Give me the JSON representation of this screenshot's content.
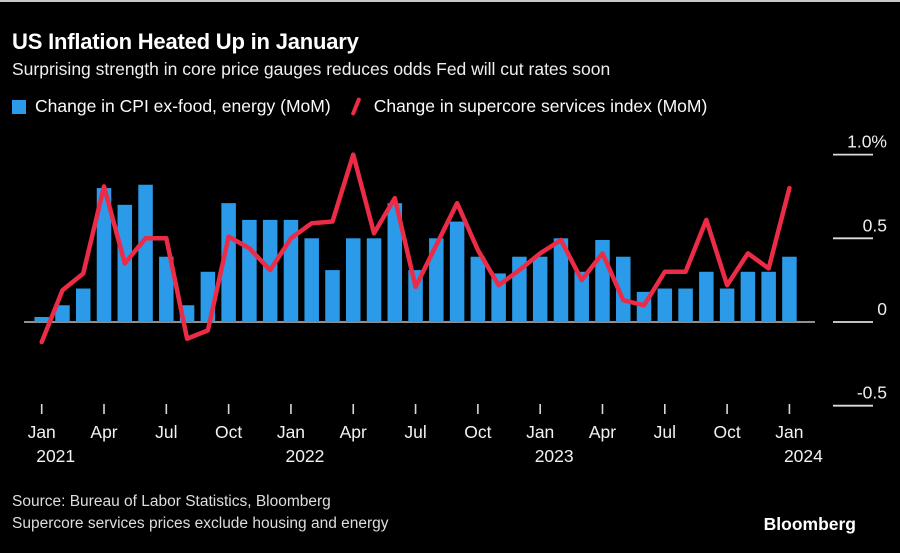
{
  "header": {
    "title": "US Inflation Heated Up in January",
    "subtitle": "Surprising strength in core price gauges reduces odds Fed will cut rates soon"
  },
  "legend": {
    "items": [
      {
        "label": "Change in CPI ex-food, energy (MoM)",
        "marker": "blue-square",
        "color": "#2B9BE9"
      },
      {
        "label": "Change in supercore services index (MoM)",
        "marker": "red-slash",
        "color": "#EC2B47"
      }
    ]
  },
  "footer": {
    "source": "Source: Bureau of Labor Statistics, Bloomberg",
    "note": "Supercore services prices exclude housing and energy",
    "logo": "Bloomberg"
  },
  "chart_data": {
    "type": "bar+line",
    "unit": "percent, month-over-month",
    "months": [
      "Jan 2021",
      "Feb 2021",
      "Mar 2021",
      "Apr 2021",
      "May 2021",
      "Jun 2021",
      "Jul 2021",
      "Aug 2021",
      "Sep 2021",
      "Oct 2021",
      "Nov 2021",
      "Dec 2021",
      "Jan 2022",
      "Feb 2022",
      "Mar 2022",
      "Apr 2022",
      "May 2022",
      "Jun 2022",
      "Jul 2022",
      "Aug 2022",
      "Sep 2022",
      "Oct 2022",
      "Nov 2022",
      "Dec 2022",
      "Jan 2023",
      "Feb 2023",
      "Mar 2023",
      "Apr 2023",
      "May 2023",
      "Jun 2023",
      "Jul 2023",
      "Aug 2023",
      "Sep 2023",
      "Oct 2023",
      "Nov 2023",
      "Dec 2023",
      "Jan 2024"
    ],
    "series": [
      {
        "name": "Change in CPI ex-food, energy (MoM)",
        "type": "bar",
        "color": "#2B9BE9",
        "values": [
          0.03,
          0.1,
          0.2,
          0.8,
          0.7,
          0.82,
          0.39,
          0.1,
          0.3,
          0.71,
          0.61,
          0.61,
          0.61,
          0.5,
          0.31,
          0.5,
          0.5,
          0.71,
          0.31,
          0.5,
          0.6,
          0.39,
          0.29,
          0.39,
          0.39,
          0.5,
          0.3,
          0.49,
          0.39,
          0.18,
          0.2,
          0.2,
          0.3,
          0.2,
          0.3,
          0.3,
          0.39
        ]
      },
      {
        "name": "Change in supercore services index (MoM)",
        "type": "line",
        "color": "#EC2B47",
        "values": [
          -0.12,
          0.19,
          0.29,
          0.81,
          0.35,
          0.5,
          0.5,
          -0.1,
          -0.05,
          0.51,
          0.44,
          0.31,
          0.5,
          0.59,
          0.6,
          1.0,
          0.53,
          0.74,
          0.21,
          0.46,
          0.71,
          0.43,
          0.22,
          0.31,
          0.41,
          0.49,
          0.25,
          0.41,
          0.13,
          0.1,
          0.3,
          0.3,
          0.61,
          0.22,
          0.41,
          0.32,
          0.8
        ]
      }
    ],
    "ylim": [
      -0.62,
      1.16
    ],
    "y_ticks": [
      {
        "v": 1.0,
        "label": "1.0%"
      },
      {
        "v": 0.5,
        "label": "0.5"
      },
      {
        "v": 0.0,
        "label": "0"
      },
      {
        "v": -0.5,
        "label": "-0.5"
      }
    ],
    "x_ticks": [
      {
        "month": "Jan",
        "year": "2021"
      },
      {
        "month": "Apr"
      },
      {
        "month": "Jul"
      },
      {
        "month": "Oct"
      },
      {
        "month": "Jan",
        "year": "2022"
      },
      {
        "month": "Apr"
      },
      {
        "month": "Jul"
      },
      {
        "month": "Oct"
      },
      {
        "month": "Jan",
        "year": "2023"
      },
      {
        "month": "Apr"
      },
      {
        "month": "Jul"
      },
      {
        "month": "Oct"
      },
      {
        "month": "Jan",
        "year": "2024"
      }
    ],
    "grid": "none",
    "legend_position": "top-left"
  }
}
